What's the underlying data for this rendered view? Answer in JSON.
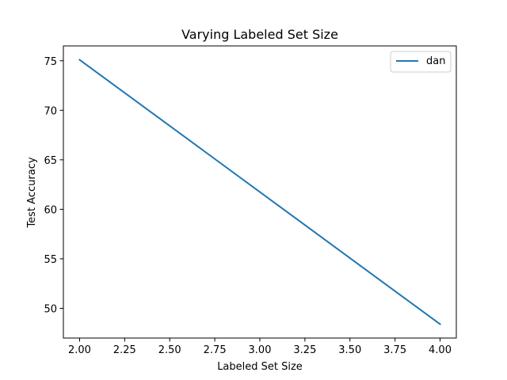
{
  "chart_data": {
    "type": "line",
    "title": "Varying Labeled Set Size",
    "xlabel": "Labeled Set Size",
    "ylabel": "Test Accuracy",
    "xlim": [
      1.91,
      4.09
    ],
    "ylim": [
      47.0,
      76.5
    ],
    "xticks": [
      2.0,
      2.25,
      2.5,
      2.75,
      3.0,
      3.25,
      3.5,
      3.75,
      4.0
    ],
    "xtick_labels": [
      "2.00",
      "2.25",
      "2.50",
      "2.75",
      "3.00",
      "3.25",
      "3.50",
      "3.75",
      "4.00"
    ],
    "yticks": [
      50,
      55,
      60,
      65,
      70,
      75
    ],
    "ytick_labels": [
      "50",
      "55",
      "60",
      "65",
      "70",
      "75"
    ],
    "grid": false,
    "legend_position": "top-right",
    "series": [
      {
        "name": "dan",
        "color": "#1f77b4",
        "x": [
          2,
          4
        ],
        "y": [
          75.1,
          48.4
        ]
      }
    ]
  }
}
